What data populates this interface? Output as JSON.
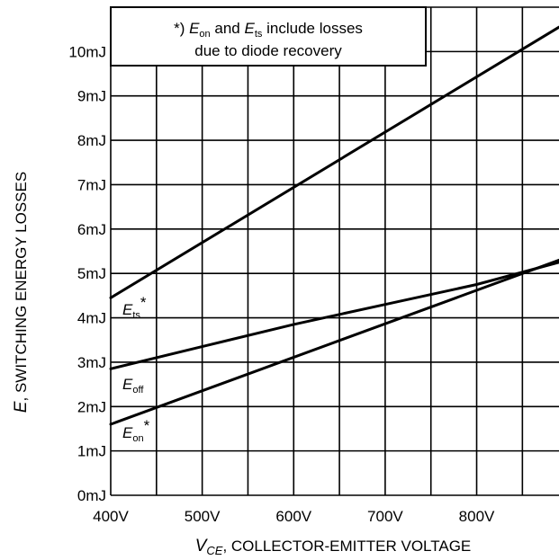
{
  "chart_data": {
    "type": "line",
    "x_unit": "V",
    "y_unit": "mJ",
    "xlim": [
      400,
      890
    ],
    "ylim": [
      0,
      11
    ],
    "x_ticks": [
      400,
      500,
      600,
      700,
      800
    ],
    "x_tick_labels": [
      "400V",
      "500V",
      "600V",
      "700V",
      "800V"
    ],
    "y_ticks": [
      0,
      1,
      2,
      3,
      4,
      5,
      6,
      7,
      8,
      9,
      10
    ],
    "y_tick_labels": [
      "0mJ",
      "1mJ",
      "2mJ",
      "3mJ",
      "4mJ",
      "5mJ",
      "6mJ",
      "7mJ",
      "8mJ",
      "9mJ",
      "10mJ"
    ],
    "grid": true,
    "xlabel": {
      "sym": "V",
      "sub": "CE",
      "rest": ", COLLECTOR-EMITTER VOLTAGE"
    },
    "ylabel": {
      "sym": "E",
      "rest": ", SWITCHING ENERGY LOSSES"
    },
    "annotation": {
      "line1": {
        "prefix": "*) ",
        "e1": "E",
        "s1": "on",
        "mid": " and ",
        "e2": "E",
        "s2": "ts",
        "suffix": " include losses"
      },
      "line2": "due to diode recovery"
    },
    "series": [
      {
        "e": "E",
        "sub": "ts",
        "star": "*",
        "x": [
          400,
          890
        ],
        "y": [
          4.45,
          10.55
        ]
      },
      {
        "e": "E",
        "sub": "off",
        "star": "",
        "x": [
          400,
          500,
          600,
          700,
          800,
          890
        ],
        "y": [
          2.85,
          3.35,
          3.85,
          4.3,
          4.75,
          5.25
        ]
      },
      {
        "e": "E",
        "sub": "on",
        "star": "*",
        "x": [
          400,
          890
        ],
        "y": [
          1.6,
          5.3
        ]
      }
    ]
  }
}
